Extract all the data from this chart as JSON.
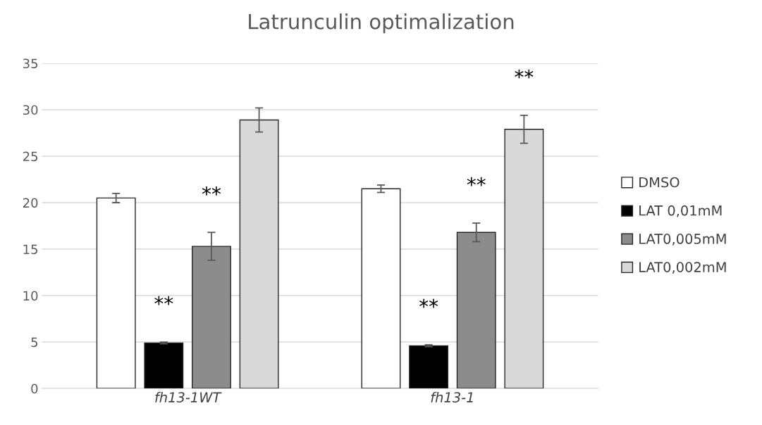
{
  "chart_data": {
    "type": "bar",
    "title": "Latrunculin optimalization",
    "categories": [
      "fh13-1WT",
      "fh13-1"
    ],
    "series": [
      {
        "name": "DMSO",
        "color": "#ffffff",
        "values": [
          20.5,
          21.5
        ],
        "errors": [
          0.5,
          0.4
        ]
      },
      {
        "name": "LAT 0,01mM",
        "color": "#000000",
        "values": [
          4.9,
          4.6
        ],
        "errors": [
          0.1,
          0.1
        ],
        "value_labels": [
          "**",
          "**"
        ]
      },
      {
        "name": "LAT0,005mM",
        "color": "#8c8c8c",
        "values": [
          15.3,
          16.8
        ],
        "errors": [
          1.5,
          1.0
        ],
        "value_labels": [
          "**",
          "**"
        ]
      },
      {
        "name": "LAT0,002mM",
        "color": "#d9d9d9",
        "values": [
          28.9,
          27.9
        ],
        "errors": [
          1.3,
          1.5
        ],
        "value_labels": [
          null,
          "**"
        ]
      }
    ],
    "ylim": [
      0,
      35
    ],
    "yticks": [
      0,
      5,
      10,
      15,
      20,
      25,
      30,
      35
    ],
    "grid": "y",
    "legend": "right"
  }
}
